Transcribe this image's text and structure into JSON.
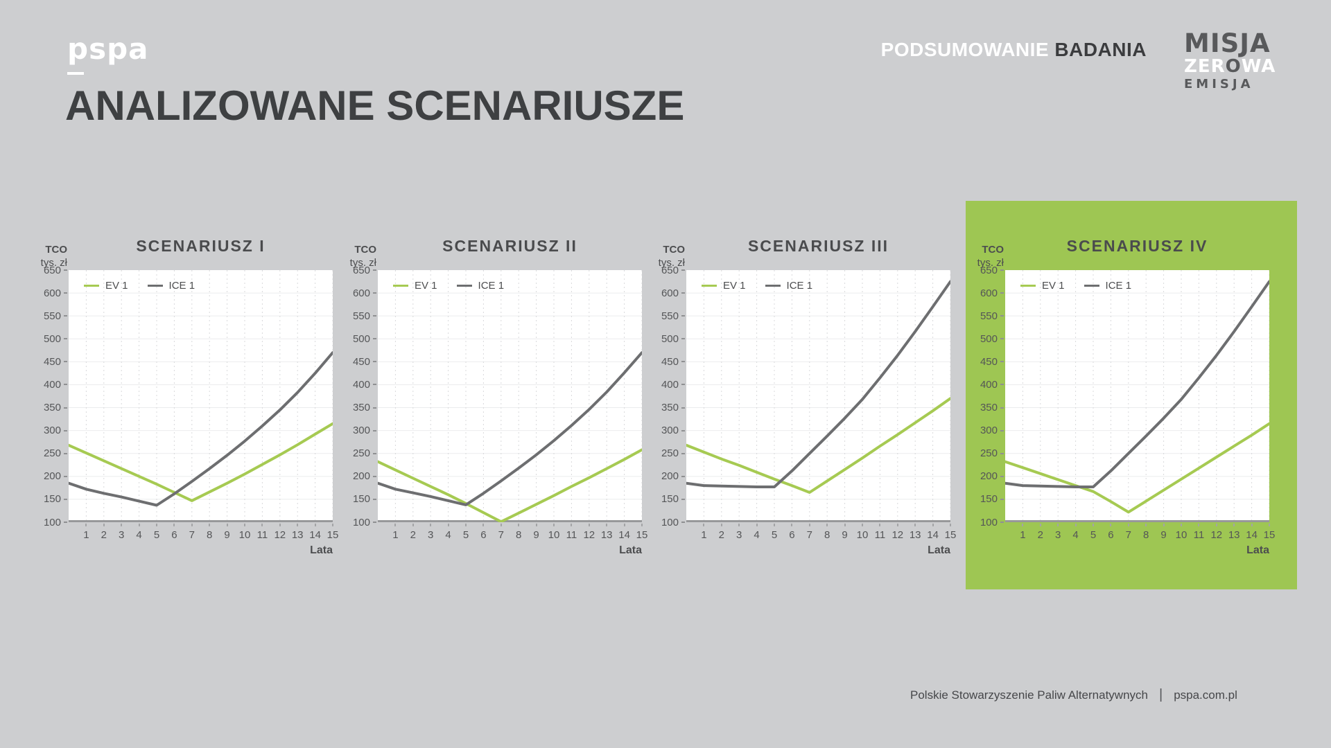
{
  "page": {
    "title": "ANALIZOWANE SCENARIUSZE",
    "background": "#cdced0"
  },
  "header": {
    "brand": "pspa",
    "section": {
      "light": "PODSUMOWANIE",
      "dark": "BADANIA"
    },
    "logo": {
      "line1": "MISJA",
      "zer": "ZER",
      "o": "O",
      "wa": "WA",
      "line3": "EMISJA"
    }
  },
  "footer": {
    "organization": "Polskie Stowarzyszenie Paliw Alternatywnych",
    "separator": "|",
    "website": "pspa.com.pl"
  },
  "colors": {
    "ev_green": "#a6ca52",
    "ice_gray": "#6d6e70",
    "highlight_green": "#9ec653",
    "plot_background": "#ffffff"
  },
  "chart_data": [
    {
      "type": "line",
      "title": "SCENARIUSZ I",
      "highlighted": false,
      "xlabel": "Lata",
      "ylabel_line1": "TCO",
      "ylabel_line2": "tys. zł",
      "xlim": [
        0,
        15
      ],
      "ylim": [
        100,
        650
      ],
      "grid": true,
      "legend_position": "top-left",
      "x_ticks": [
        1,
        2,
        3,
        4,
        5,
        6,
        7,
        8,
        9,
        10,
        11,
        12,
        13,
        14,
        15
      ],
      "y_ticks": [
        650,
        600,
        550,
        500,
        450,
        400,
        350,
        300,
        250,
        200,
        150,
        100
      ],
      "x": [
        0,
        1,
        2,
        3,
        4,
        5,
        6,
        7,
        8,
        9,
        10,
        11,
        12,
        13,
        14,
        15
      ],
      "series": [
        {
          "name": "EV 1",
          "color": "#a6ca52",
          "values": [
            268,
            251,
            234,
            217,
            200,
            183,
            165,
            147,
            166,
            185,
            205,
            226,
            247,
            269,
            292,
            315
          ]
        },
        {
          "name": "ICE 1",
          "color": "#6d6e70",
          "values": [
            185,
            172,
            163,
            155,
            146,
            137,
            162,
            189,
            217,
            246,
            277,
            310,
            345,
            383,
            425,
            470
          ]
        }
      ]
    },
    {
      "type": "line",
      "title": "SCENARIUSZ II",
      "highlighted": false,
      "xlabel": "Lata",
      "ylabel_line1": "TCO",
      "ylabel_line2": "tys. zł",
      "xlim": [
        0,
        15
      ],
      "ylim": [
        100,
        650
      ],
      "grid": true,
      "legend_position": "top-left",
      "x_ticks": [
        1,
        2,
        3,
        4,
        5,
        6,
        7,
        8,
        9,
        10,
        11,
        12,
        13,
        14,
        15
      ],
      "y_ticks": [
        650,
        600,
        550,
        500,
        450,
        400,
        350,
        300,
        250,
        200,
        150,
        100
      ],
      "x": [
        0,
        1,
        2,
        3,
        4,
        5,
        6,
        7,
        8,
        9,
        10,
        11,
        12,
        13,
        14,
        15
      ],
      "series": [
        {
          "name": "EV 1",
          "color": "#a6ca52",
          "values": [
            232,
            214,
            196,
            178,
            160,
            141,
            121,
            101,
            120,
            139,
            158,
            178,
            197,
            217,
            237,
            258
          ]
        },
        {
          "name": "ICE 1",
          "color": "#6d6e70",
          "values": [
            185,
            172,
            164,
            156,
            147,
            138,
            163,
            190,
            218,
            247,
            278,
            311,
            346,
            384,
            426,
            470
          ]
        }
      ]
    },
    {
      "type": "line",
      "title": "SCENARIUSZ III",
      "highlighted": false,
      "xlabel": "Lata",
      "ylabel_line1": "TCO",
      "ylabel_line2": "tys. zł",
      "xlim": [
        0,
        15
      ],
      "ylim": [
        100,
        650
      ],
      "grid": true,
      "legend_position": "top-left",
      "x_ticks": [
        1,
        2,
        3,
        4,
        5,
        6,
        7,
        8,
        9,
        10,
        11,
        12,
        13,
        14,
        15
      ],
      "y_ticks": [
        650,
        600,
        550,
        500,
        450,
        400,
        350,
        300,
        250,
        200,
        150,
        100
      ],
      "x": [
        0,
        1,
        2,
        3,
        4,
        5,
        6,
        7,
        8,
        9,
        10,
        11,
        12,
        13,
        14,
        15
      ],
      "series": [
        {
          "name": "EV 1",
          "color": "#a6ca52",
          "values": [
            268,
            253,
            238,
            224,
            209,
            194,
            180,
            165,
            190,
            215,
            240,
            266,
            291,
            317,
            343,
            370
          ]
        },
        {
          "name": "ICE 1",
          "color": "#6d6e70",
          "values": [
            185,
            180,
            179,
            178,
            177,
            177,
            212,
            250,
            288,
            327,
            368,
            415,
            464,
            516,
            570,
            625
          ]
        }
      ]
    },
    {
      "type": "line",
      "title": "SCENARIUSZ IV",
      "highlighted": true,
      "xlabel": "Lata",
      "ylabel_line1": "TCO",
      "ylabel_line2": "tys. zł",
      "xlim": [
        0,
        15
      ],
      "ylim": [
        100,
        650
      ],
      "grid": true,
      "legend_position": "top-left",
      "x_ticks": [
        1,
        2,
        3,
        4,
        5,
        6,
        7,
        8,
        9,
        10,
        11,
        12,
        13,
        14,
        15
      ],
      "y_ticks": [
        650,
        600,
        550,
        500,
        450,
        400,
        350,
        300,
        250,
        200,
        150,
        100
      ],
      "x": [
        0,
        1,
        2,
        3,
        4,
        5,
        6,
        7,
        8,
        9,
        10,
        11,
        12,
        13,
        14,
        15
      ],
      "series": [
        {
          "name": "EV 1",
          "color": "#a6ca52",
          "values": [
            232,
            219,
            206,
            193,
            180,
            167,
            145,
            122,
            146,
            170,
            194,
            218,
            242,
            266,
            290,
            315
          ]
        },
        {
          "name": "ICE 1",
          "color": "#6d6e70",
          "values": [
            185,
            180,
            179,
            178,
            177,
            177,
            212,
            250,
            288,
            327,
            368,
            415,
            464,
            516,
            570,
            625
          ]
        }
      ]
    }
  ]
}
